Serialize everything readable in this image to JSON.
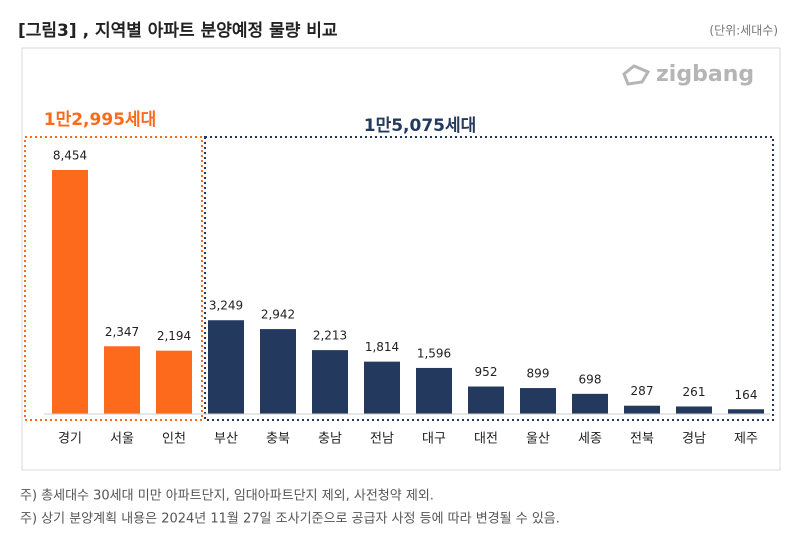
{
  "chart_data": {
    "type": "bar",
    "title": "[그림3] , 지역별 아파트 분양예정 물량 비교",
    "unit": "(단위:세대수)",
    "logo": "zigbang",
    "groups": [
      {
        "annotation": "1만2,995세대",
        "color": "#fe6a1c",
        "categories": [
          "경기",
          "서울",
          "인천"
        ],
        "values": [
          8454,
          2347,
          2194
        ],
        "value_labels": [
          "8,454",
          "2,347",
          "2,194"
        ]
      },
      {
        "annotation": "1만5,075세대",
        "color": "#233a5e",
        "categories": [
          "부산",
          "충북",
          "충남",
          "전남",
          "대구",
          "대전",
          "울산",
          "세종",
          "전북",
          "경남",
          "제주"
        ],
        "values": [
          3249,
          2942,
          2213,
          1814,
          1596,
          952,
          899,
          698,
          287,
          261,
          164
        ],
        "value_labels": [
          "3,249",
          "2,942",
          "2,213",
          "1,814",
          "1,596",
          "952",
          "899",
          "698",
          "287",
          "261",
          "164"
        ]
      }
    ],
    "notes": [
      "주) 총세대수 30세대 미만 아파트단지, 임대아파트단지 제외, 사전청약 제외.",
      "주) 상기 분양계획 내용은 2024년 11월 27일 조사기준으로 공급자 사정 등에 따라 변경될 수 있음."
    ]
  }
}
